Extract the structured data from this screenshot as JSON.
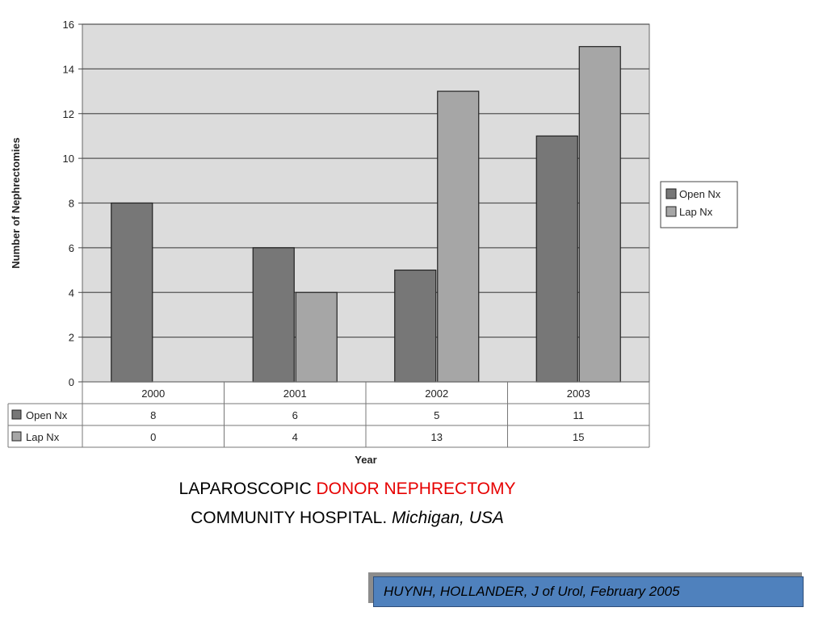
{
  "chart_data": {
    "type": "bar",
    "categories": [
      "2000",
      "2001",
      "2002",
      "2003"
    ],
    "series": [
      {
        "name": "Open Nx",
        "values": [
          8,
          6,
          5,
          11
        ],
        "color": "#777777"
      },
      {
        "name": "Lap Nx",
        "values": [
          0,
          4,
          13,
          15
        ],
        "color": "#a6a6a6"
      }
    ],
    "xlabel": "Year",
    "ylabel": "Number of Nephrectomies",
    "ylim": [
      0,
      16
    ],
    "yticks": [
      0,
      2,
      4,
      6,
      8,
      10,
      12,
      14,
      16
    ],
    "grid": true,
    "legend": "right",
    "data_table": true,
    "plot_background": "#dcdcdc"
  },
  "caption": {
    "line1_part1": "LAPAROSCOPIC ",
    "line1_part2": "DONOR NEPHRECTOMY",
    "line2_part1": "COMMUNITY HOSPITAL. ",
    "line2_part2": "Michigan, USA"
  },
  "citation": "HUYNH, HOLLANDER, J of Urol, February 2005",
  "colors": {
    "accent": "#e60000",
    "citation_bg": "#4f81bd"
  }
}
